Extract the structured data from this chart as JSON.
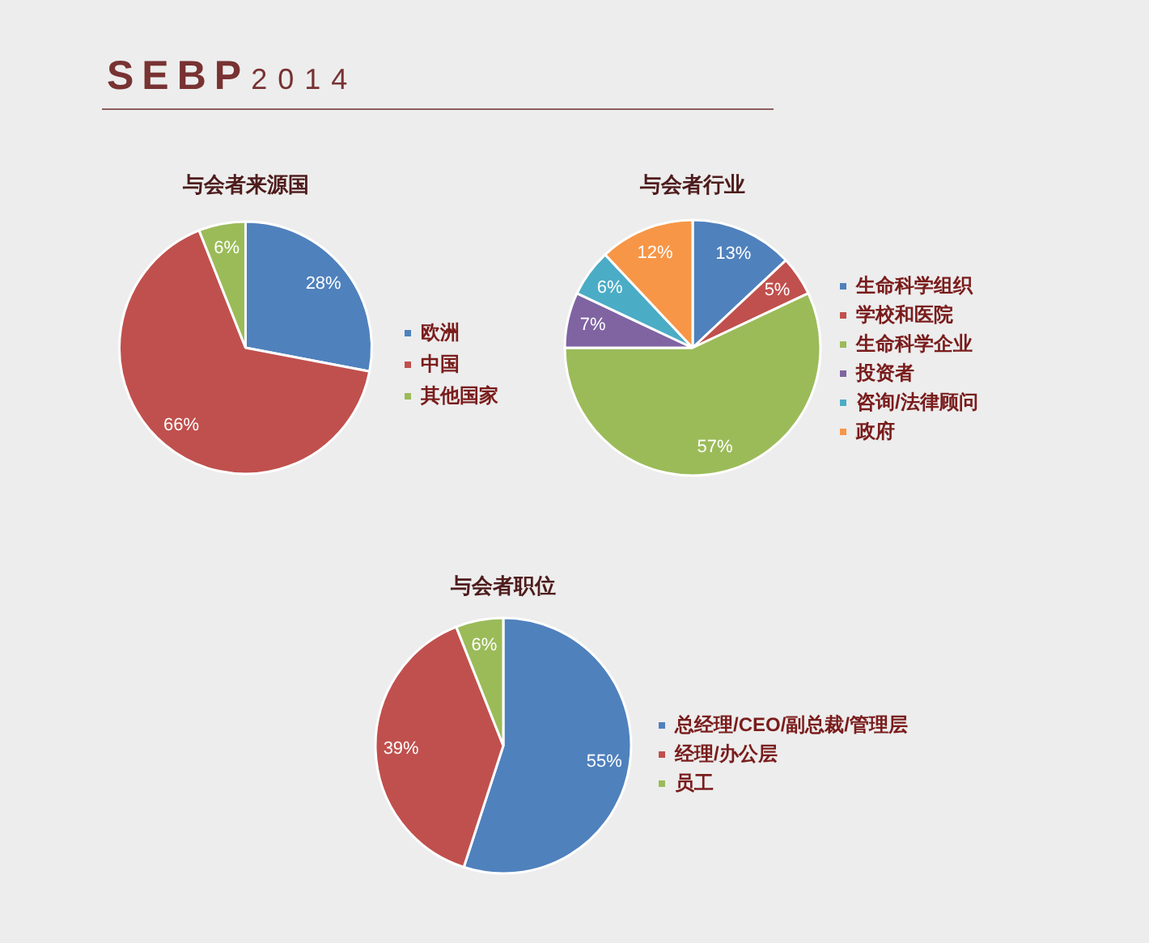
{
  "chart_data": [
    {
      "type": "other",
      "title": "SEBP",
      "subtitle": "2014"
    },
    {
      "type": "pie",
      "title": "与会者来源国",
      "categories": [
        "欧洲",
        "中国",
        "其他国家"
      ],
      "values": [
        28,
        66,
        6
      ],
      "colors": [
        "#4f81bd",
        "#c0504d",
        "#9bbb59"
      ],
      "value_labels": [
        "28%",
        "66%",
        "6%"
      ],
      "legend": "right"
    },
    {
      "type": "pie",
      "title": "与会者行业",
      "categories": [
        "生命科学组织",
        "学校和医院",
        "生命科学企业",
        "投资者",
        "咨询/法律顾问",
        "政府"
      ],
      "values": [
        13,
        5,
        57,
        7,
        6,
        12
      ],
      "colors": [
        "#4f81bd",
        "#c0504d",
        "#9bbb59",
        "#8064a2",
        "#4bacc6",
        "#f79646"
      ],
      "value_labels": [
        "13%",
        "5%",
        "57%",
        "7%",
        "6%",
        "12%"
      ],
      "legend": "right"
    },
    {
      "type": "pie",
      "title": "与会者职位",
      "categories": [
        "总经理/CEO/副总裁/管理层",
        "经理/办公层",
        "员工"
      ],
      "values": [
        55,
        39,
        6
      ],
      "colors": [
        "#4f81bd",
        "#c0504d",
        "#9bbb59"
      ],
      "value_labels": [
        "55%",
        "39%",
        "6%"
      ],
      "legend": "right"
    }
  ]
}
